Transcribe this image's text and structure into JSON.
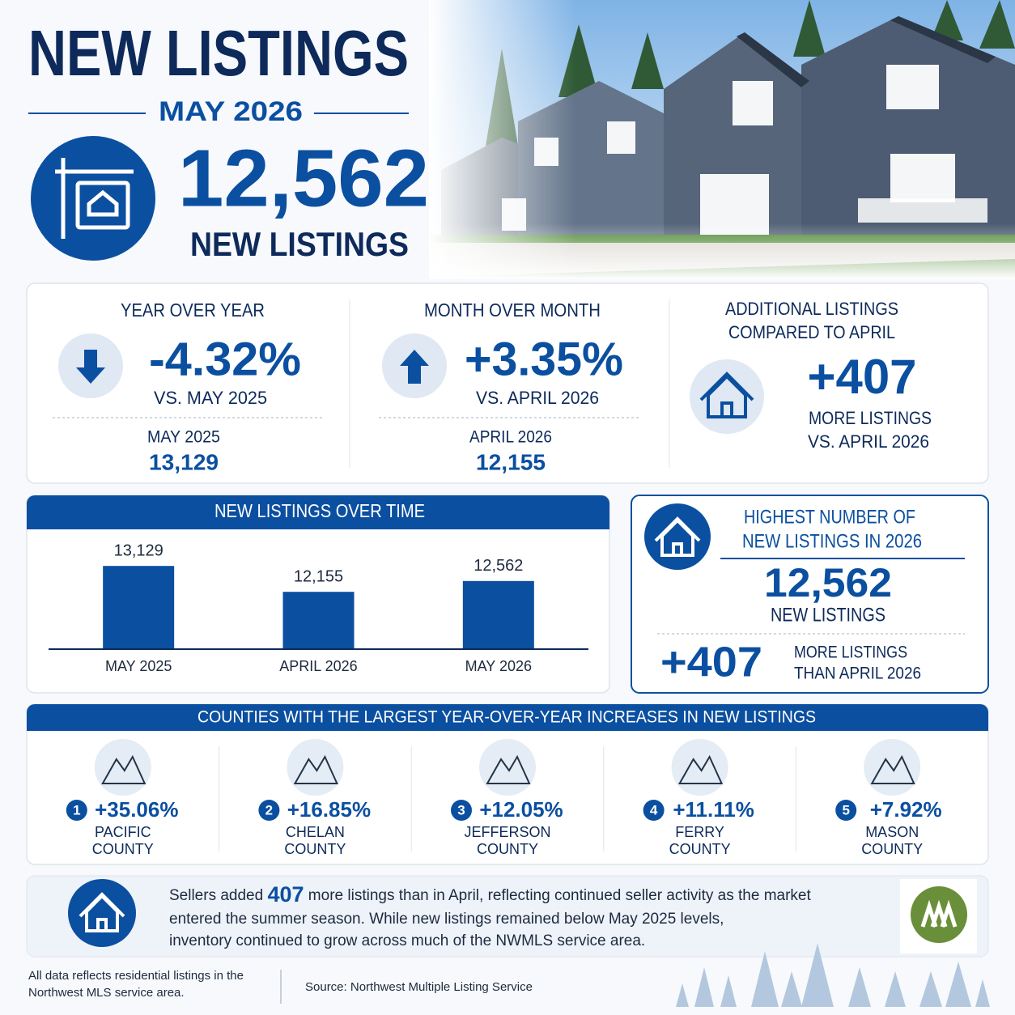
{
  "header": {
    "title": "NEW LISTINGS",
    "period": "MAY 2026",
    "total": "12,562",
    "total_label": "NEW LISTINGS"
  },
  "stats": [
    {
      "title": "YEAR OVER YEAR",
      "value": "-4.32%",
      "compare": "VS. MAY 2025",
      "base_label": "MAY 2025",
      "base_value": "13,129"
    },
    {
      "title": "MONTH OVER MONTH",
      "value": "+3.35%",
      "compare": "VS. APRIL 2026",
      "base_label": "APRIL 2026",
      "base_value": "12,155"
    },
    {
      "title_lines": [
        "ADDITIONAL LISTINGS",
        "COMPARED TO APRIL"
      ],
      "value": "+407",
      "compare_lines": [
        "MORE LISTINGS",
        "VS. APRIL 2026"
      ]
    }
  ],
  "chart_data": {
    "type": "bar",
    "title": "NEW LISTINGS OVER TIME",
    "categories": [
      "MAY 2025",
      "APRIL 2026",
      "MAY 2026"
    ],
    "values": [
      13129,
      12155,
      12562
    ],
    "value_labels": [
      "13,129",
      "12,155",
      "12,562"
    ],
    "color": "#0b4fa0",
    "ylim": [
      10000,
      13500
    ]
  },
  "highlight": {
    "title_lines": [
      "HIGHEST NUMBER OF",
      "NEW LISTINGS IN 2026"
    ],
    "value": "12,562",
    "value_label": "NEW LISTINGS",
    "change": "+407",
    "change_lines": [
      "MORE LISTINGS",
      "THAN APRIL 2026"
    ]
  },
  "counties": {
    "title": "COUNTIES WITH THE LARGEST YEAR-OVER-YEAR INCREASES IN NEW LISTINGS",
    "items": [
      {
        "rank": "1",
        "change": "+35.06%",
        "name_lines": [
          "PACIFIC",
          "COUNTY"
        ]
      },
      {
        "rank": "2",
        "change": "+16.85%",
        "name_lines": [
          "CHELAN",
          "COUNTY"
        ]
      },
      {
        "rank": "3",
        "change": "+12.05%",
        "name_lines": [
          "JEFFERSON",
          "COUNTY"
        ]
      },
      {
        "rank": "4",
        "change": "+11.11%",
        "name_lines": [
          "FERRY",
          "COUNTY"
        ]
      },
      {
        "rank": "5",
        "change": "+7.92%",
        "name_lines": [
          "MASON",
          "COUNTY"
        ]
      }
    ]
  },
  "summary": {
    "line1_start": "Sellers added ",
    "line1_value": "407",
    "line1_end": " more listings than in April, reflecting continued seller activity as the market",
    "line2": "entered the summer season. While new listings remained below May 2025 levels,",
    "line3": "inventory continued to grow across much of the NWMLS service area."
  },
  "footer": {
    "note_lines": [
      "All data reflects residential listings in the",
      "Northwest MLS service area."
    ],
    "source": "Source: Northwest Multiple Listing Service"
  }
}
